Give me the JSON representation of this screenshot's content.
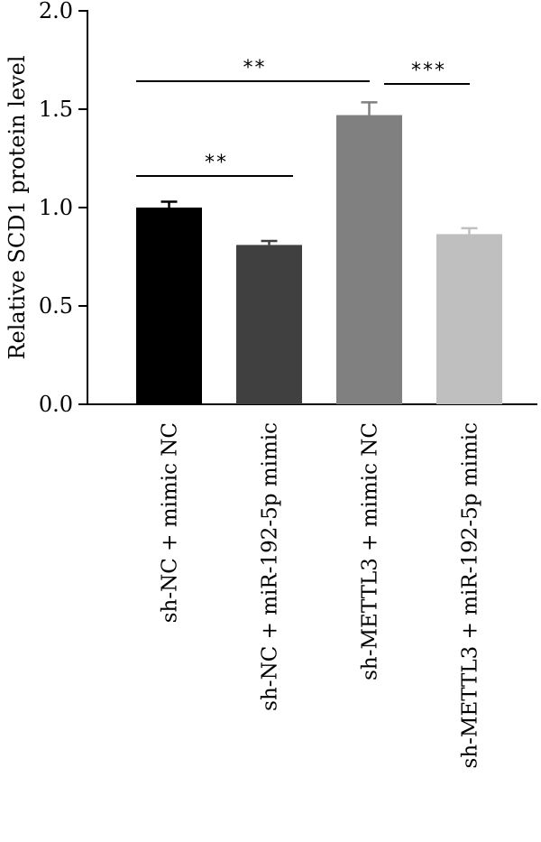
{
  "chart_data": {
    "type": "bar",
    "ylabel": "Relative SCD1 protein level",
    "ylim": [
      0,
      2.0
    ],
    "yticks": [
      "0.0",
      "0.5",
      "1.0",
      "1.5",
      "2.0"
    ],
    "categories": [
      "sh-NC + mimic NC",
      "sh-NC + miR-192-5p mimic",
      "sh-METTL3 + mimic NC",
      "sh-METTL3 + miR-192-5p mimic"
    ],
    "values": [
      1.0,
      0.81,
      1.47,
      0.865
    ],
    "errors": [
      0.03,
      0.02,
      0.065,
      0.03
    ],
    "bar_colors": [
      "#000000",
      "#404040",
      "#808080",
      "#bfbfbf"
    ],
    "significance": [
      {
        "from": 0,
        "to": 1,
        "label": "**"
      },
      {
        "from": 0,
        "to": 2,
        "label": "**"
      },
      {
        "from": 2,
        "to": 3,
        "label": "***"
      }
    ],
    "grid": false
  }
}
